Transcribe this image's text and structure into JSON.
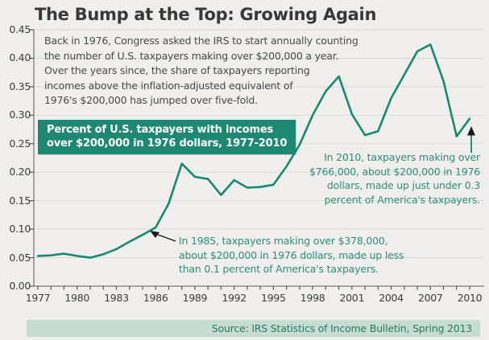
{
  "title": "The Bump at the Top: Growing Again",
  "intro": {
    "lines": [
      "Back in 1976, Congress asked the IRS to start annually counting",
      "the number of U.S. taxpayers making over $200,000 a year.",
      "Over the years since, the share of taxpayers reporting",
      "incomes above the inflation-adjusted equivalent of",
      "1976's $200,000 has jumped over five-fold."
    ]
  },
  "series_label": {
    "line1": "Percent of U.S. taxpayers with incomes",
    "line2": "over $200,000 in 1976 dollars, 1977-2010"
  },
  "annotations": {
    "a1985": {
      "lines": [
        "In 1985, taxpayers making over $378,000,",
        "about $200,000 in 1976 dollars, made up less",
        "than 0.1 percent of America's taxpayers."
      ]
    },
    "a2010": {
      "lines": [
        "In 2010, taxpayers making over",
        "$766,000, about $200,000 in 1976",
        "dollars, made up just under 0.3",
        "percent of America's taxpayers."
      ]
    }
  },
  "source": "Source: IRS Statistics of Income Bulletin, Spring 2013",
  "colors": {
    "background": "#f0efee",
    "line": "#168a70",
    "label_box": "#1f8872",
    "annotation_text": "#2e8c79",
    "source_bg": "#c8dcd2",
    "source_text": "#267a6d",
    "gridline": "#d9d9d9",
    "axis": "#7a7a7a",
    "tick": "#555555",
    "axis_label": "#3c3c3c",
    "title_text": "#383838",
    "body_text": "#4a4a4a",
    "arrow_dark": "#1a1a1a"
  },
  "chart_data": {
    "type": "line",
    "title": "Percent of U.S. taxpayers with incomes over $200,000 in 1976 dollars, 1977-2010",
    "xlabel": "",
    "ylabel": "",
    "xlim": [
      1977,
      2010
    ],
    "ylim": [
      0,
      0.45
    ],
    "grid": "horizontal",
    "legend_position": "none",
    "x": [
      1977,
      1978,
      1979,
      1980,
      1981,
      1982,
      1983,
      1984,
      1985,
      1986,
      1987,
      1988,
      1989,
      1990,
      1991,
      1992,
      1993,
      1994,
      1995,
      1996,
      1997,
      1998,
      1999,
      2000,
      2001,
      2002,
      2003,
      2004,
      2005,
      2006,
      2007,
      2008,
      2009,
      2010
    ],
    "values": [
      0.053,
      0.054,
      0.057,
      0.053,
      0.05,
      0.056,
      0.065,
      0.078,
      0.09,
      0.103,
      0.145,
      0.215,
      0.192,
      0.188,
      0.16,
      0.186,
      0.173,
      0.174,
      0.178,
      0.21,
      0.248,
      0.3,
      0.342,
      0.368,
      0.302,
      0.265,
      0.272,
      0.33,
      0.371,
      0.412,
      0.424,
      0.36,
      0.263,
      0.294
    ],
    "y_ticks": [
      "0.00",
      "0.05",
      "0.10",
      "0.15",
      "0.20",
      "0.25",
      "0.30",
      "0.35",
      "0.40",
      "0.45"
    ],
    "x_tick_labels": [
      "1977",
      "1980",
      "1983",
      "1986",
      "1989",
      "1992",
      "1995",
      "1998",
      "2001",
      "2004",
      "2007",
      "2010"
    ]
  }
}
